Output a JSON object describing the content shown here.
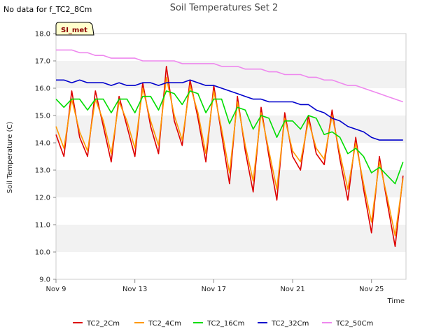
{
  "header": {
    "no_data_note": "No data for f_TC2_8Cm"
  },
  "badge": {
    "label": "SI_met",
    "fill": "#ffffcc",
    "text_color": "#8b0000"
  },
  "chart_data": {
    "type": "line",
    "title": "Soil Temperatures Set 2",
    "xlabel": "Time",
    "ylabel": "Soil Temperature (C)",
    "x_start": "Nov 9",
    "x_end": "Nov 26.75",
    "xlim": [
      "Nov 9",
      "Nov 26.75"
    ],
    "x_tick_labels": [
      "Nov 9",
      "Nov 13",
      "Nov 17",
      "Nov 21",
      "Nov 25"
    ],
    "ylim": [
      9.0,
      18.0
    ],
    "y_ticks": [
      "9.0",
      "10.0",
      "11.0",
      "12.0",
      "13.0",
      "14.0",
      "15.0",
      "16.0",
      "17.0",
      "18.0"
    ],
    "grid": "horizontal alternating bands",
    "legend_position": "bottom",
    "series": [
      {
        "name": "TC2_2Cm",
        "color": "#dd0000",
        "x": [
          "Nov 9.0",
          "Nov 9.4",
          "Nov 9.8",
          "Nov 10.2",
          "Nov 10.6",
          "Nov 11.0",
          "Nov 11.4",
          "Nov 11.8",
          "Nov 12.2",
          "Nov 12.6",
          "Nov 13.0",
          "Nov 13.4",
          "Nov 13.8",
          "Nov 14.2",
          "Nov 14.6",
          "Nov 15.0",
          "Nov 15.4",
          "Nov 15.8",
          "Nov 16.2",
          "Nov 16.6",
          "Nov 17.0",
          "Nov 17.4",
          "Nov 17.8",
          "Nov 18.2",
          "Nov 18.6",
          "Nov 19.0",
          "Nov 19.4",
          "Nov 19.8",
          "Nov 20.2",
          "Nov 20.6",
          "Nov 21.0",
          "Nov 21.4",
          "Nov 21.8",
          "Nov 22.2",
          "Nov 22.6",
          "Nov 23.0",
          "Nov 23.4",
          "Nov 23.8",
          "Nov 24.2",
          "Nov 24.6",
          "Nov 25.0",
          "Nov 25.4",
          "Nov 25.8",
          "Nov 26.2",
          "Nov 26.6"
        ],
        "y": [
          14.3,
          13.5,
          15.9,
          14.2,
          13.5,
          15.9,
          14.6,
          13.3,
          15.7,
          14.6,
          13.5,
          16.2,
          14.6,
          13.6,
          16.8,
          14.8,
          13.9,
          16.3,
          14.9,
          13.3,
          16.1,
          14.3,
          12.5,
          15.7,
          13.7,
          12.2,
          15.3,
          13.5,
          11.9,
          15.1,
          13.5,
          13.0,
          15.0,
          13.6,
          13.2,
          15.2,
          13.4,
          11.9,
          14.2,
          12.3,
          10.7,
          13.5,
          11.8,
          10.2,
          12.8
        ]
      },
      {
        "name": "TC2_4Cm",
        "color": "#ff9900",
        "x": [
          "Nov 9.0",
          "Nov 9.4",
          "Nov 9.8",
          "Nov 10.2",
          "Nov 10.6",
          "Nov 11.0",
          "Nov 11.4",
          "Nov 11.8",
          "Nov 12.2",
          "Nov 12.6",
          "Nov 13.0",
          "Nov 13.4",
          "Nov 13.8",
          "Nov 14.2",
          "Nov 14.6",
          "Nov 15.0",
          "Nov 15.4",
          "Nov 15.8",
          "Nov 16.2",
          "Nov 16.6",
          "Nov 17.0",
          "Nov 17.4",
          "Nov 17.8",
          "Nov 18.2",
          "Nov 18.6",
          "Nov 19.0",
          "Nov 19.4",
          "Nov 19.8",
          "Nov 20.2",
          "Nov 20.6",
          "Nov 21.0",
          "Nov 21.4",
          "Nov 21.8",
          "Nov 22.2",
          "Nov 22.6",
          "Nov 23.0",
          "Nov 23.4",
          "Nov 23.8",
          "Nov 24.2",
          "Nov 24.6",
          "Nov 25.0",
          "Nov 25.4",
          "Nov 25.8",
          "Nov 26.2",
          "Nov 26.6"
        ],
        "y": [
          14.6,
          13.8,
          15.6,
          14.4,
          13.7,
          15.6,
          14.8,
          13.6,
          15.5,
          14.8,
          13.8,
          16.0,
          14.8,
          13.9,
          16.4,
          15.0,
          14.1,
          16.1,
          15.1,
          13.6,
          15.9,
          14.5,
          12.9,
          15.5,
          13.9,
          12.6,
          15.1,
          13.7,
          12.3,
          14.9,
          13.7,
          13.3,
          14.8,
          13.8,
          13.4,
          15.0,
          13.6,
          12.3,
          14.0,
          12.5,
          11.1,
          13.3,
          12.0,
          10.6,
          12.7
        ]
      },
      {
        "name": "TC2_16Cm",
        "color": "#00dd00",
        "x": [
          "Nov 9.0",
          "Nov 9.4",
          "Nov 9.8",
          "Nov 10.2",
          "Nov 10.6",
          "Nov 11.0",
          "Nov 11.4",
          "Nov 11.8",
          "Nov 12.2",
          "Nov 12.6",
          "Nov 13.0",
          "Nov 13.4",
          "Nov 13.8",
          "Nov 14.2",
          "Nov 14.6",
          "Nov 15.0",
          "Nov 15.4",
          "Nov 15.8",
          "Nov 16.2",
          "Nov 16.6",
          "Nov 17.0",
          "Nov 17.4",
          "Nov 17.8",
          "Nov 18.2",
          "Nov 18.6",
          "Nov 19.0",
          "Nov 19.4",
          "Nov 19.8",
          "Nov 20.2",
          "Nov 20.6",
          "Nov 21.0",
          "Nov 21.4",
          "Nov 21.8",
          "Nov 22.2",
          "Nov 22.6",
          "Nov 23.0",
          "Nov 23.4",
          "Nov 23.8",
          "Nov 24.2",
          "Nov 24.6",
          "Nov 25.0",
          "Nov 25.4",
          "Nov 25.8",
          "Nov 26.2",
          "Nov 26.6"
        ],
        "y": [
          15.6,
          15.3,
          15.6,
          15.6,
          15.2,
          15.6,
          15.6,
          15.1,
          15.6,
          15.6,
          15.1,
          15.7,
          15.7,
          15.2,
          15.9,
          15.8,
          15.4,
          15.9,
          15.8,
          15.1,
          15.6,
          15.6,
          14.7,
          15.3,
          15.2,
          14.5,
          15.0,
          14.9,
          14.2,
          14.8,
          14.8,
          14.5,
          15.0,
          14.9,
          14.3,
          14.4,
          14.2,
          13.6,
          13.8,
          13.5,
          12.9,
          13.1,
          12.8,
          12.5,
          13.3
        ]
      },
      {
        "name": "TC2_32Cm",
        "color": "#0000cc",
        "x": [
          "Nov 9.0",
          "Nov 9.4",
          "Nov 9.8",
          "Nov 10.2",
          "Nov 10.6",
          "Nov 11.0",
          "Nov 11.4",
          "Nov 11.8",
          "Nov 12.2",
          "Nov 12.6",
          "Nov 13.0",
          "Nov 13.4",
          "Nov 13.8",
          "Nov 14.2",
          "Nov 14.6",
          "Nov 15.0",
          "Nov 15.4",
          "Nov 15.8",
          "Nov 16.2",
          "Nov 16.6",
          "Nov 17.0",
          "Nov 17.4",
          "Nov 17.8",
          "Nov 18.2",
          "Nov 18.6",
          "Nov 19.0",
          "Nov 19.4",
          "Nov 19.8",
          "Nov 20.2",
          "Nov 20.6",
          "Nov 21.0",
          "Nov 21.4",
          "Nov 21.8",
          "Nov 22.2",
          "Nov 22.6",
          "Nov 23.0",
          "Nov 23.4",
          "Nov 23.8",
          "Nov 24.2",
          "Nov 24.6",
          "Nov 25.0",
          "Nov 25.4",
          "Nov 25.8",
          "Nov 26.2",
          "Nov 26.6"
        ],
        "y": [
          16.3,
          16.3,
          16.2,
          16.3,
          16.2,
          16.2,
          16.2,
          16.1,
          16.2,
          16.1,
          16.1,
          16.2,
          16.2,
          16.1,
          16.2,
          16.2,
          16.2,
          16.3,
          16.2,
          16.1,
          16.1,
          16.0,
          15.9,
          15.8,
          15.7,
          15.6,
          15.6,
          15.5,
          15.5,
          15.5,
          15.5,
          15.4,
          15.4,
          15.2,
          15.1,
          14.9,
          14.8,
          14.6,
          14.5,
          14.4,
          14.2,
          14.1,
          14.1,
          14.1,
          14.1
        ]
      },
      {
        "name": "TC2_50Cm",
        "color": "#ee88ee",
        "x": [
          "Nov 9.0",
          "Nov 9.4",
          "Nov 9.8",
          "Nov 10.2",
          "Nov 10.6",
          "Nov 11.0",
          "Nov 11.4",
          "Nov 11.8",
          "Nov 12.2",
          "Nov 12.6",
          "Nov 13.0",
          "Nov 13.4",
          "Nov 13.8",
          "Nov 14.2",
          "Nov 14.6",
          "Nov 15.0",
          "Nov 15.4",
          "Nov 15.8",
          "Nov 16.2",
          "Nov 16.6",
          "Nov 17.0",
          "Nov 17.4",
          "Nov 17.8",
          "Nov 18.2",
          "Nov 18.6",
          "Nov 19.0",
          "Nov 19.4",
          "Nov 19.8",
          "Nov 20.2",
          "Nov 20.6",
          "Nov 21.0",
          "Nov 21.4",
          "Nov 21.8",
          "Nov 22.2",
          "Nov 22.6",
          "Nov 23.0",
          "Nov 23.4",
          "Nov 23.8",
          "Nov 24.2",
          "Nov 24.6",
          "Nov 25.0",
          "Nov 25.4",
          "Nov 25.8",
          "Nov 26.2",
          "Nov 26.6"
        ],
        "y": [
          17.4,
          17.4,
          17.4,
          17.3,
          17.3,
          17.2,
          17.2,
          17.1,
          17.1,
          17.1,
          17.1,
          17.0,
          17.0,
          17.0,
          17.0,
          17.0,
          16.9,
          16.9,
          16.9,
          16.9,
          16.9,
          16.8,
          16.8,
          16.8,
          16.7,
          16.7,
          16.7,
          16.6,
          16.6,
          16.5,
          16.5,
          16.5,
          16.4,
          16.4,
          16.3,
          16.3,
          16.2,
          16.1,
          16.1,
          16.0,
          15.9,
          15.8,
          15.7,
          15.6,
          15.5
        ]
      }
    ]
  }
}
